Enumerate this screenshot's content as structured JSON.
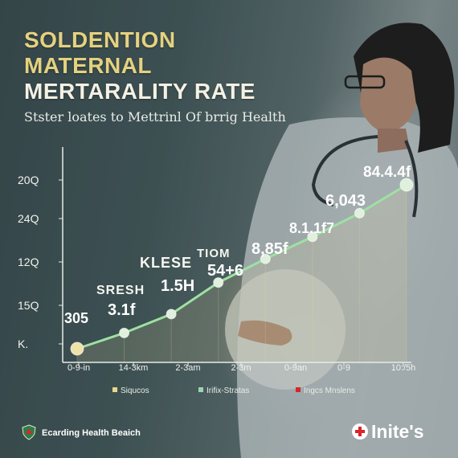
{
  "title_lines": [
    "SOLDENTION",
    "MATERNAL",
    "MERTARALITY RATE"
  ],
  "subtitle": "Stster loates to Mettrinl Of brrig Health",
  "chart_data": {
    "type": "line",
    "title": "SOLDENTION MATERNAL MERTARALITY RATE",
    "subtitle": "Stster loates to Mettrinl Of brrig Health",
    "y_tick_labels": [
      "20Q",
      "24Q",
      "12Q",
      "15Q",
      "K."
    ],
    "x_tick_labels": [
      "0-9-in",
      "14-3km",
      "2-3am",
      "2-3m",
      "0-9an",
      "0-9",
      "10:/5h"
    ],
    "series": [
      {
        "values": [
          0.0,
          0.5,
          1.1,
          2.1,
          2.85,
          3.55,
          4.3,
          5.2
        ],
        "point_labels": [
          "305",
          "3.1f",
          "1.5H",
          "54+6",
          "8,85f",
          "8.1.1f7",
          "6,043",
          "84.4.4f"
        ]
      }
    ],
    "annotations": [
      "SRESH",
      "KLESE",
      "TIOM"
    ],
    "legend": {
      "placement": "bottom",
      "entries": [
        {
          "label": "Siqucos",
          "color": "#e7d88a"
        },
        {
          "label": "Irifix-Stratas",
          "color": "#9fd3b0"
        },
        {
          "label": "Ingcs Mnslens",
          "color": "#d8262b"
        }
      ]
    },
    "grid": false,
    "colors": {
      "line": "#9fe0a3",
      "point": "#dff1dc",
      "area": "#e8d79a"
    }
  },
  "footer": {
    "text": "Ecarding Health Beaich"
  },
  "brand": {
    "name": "Inite's"
  }
}
